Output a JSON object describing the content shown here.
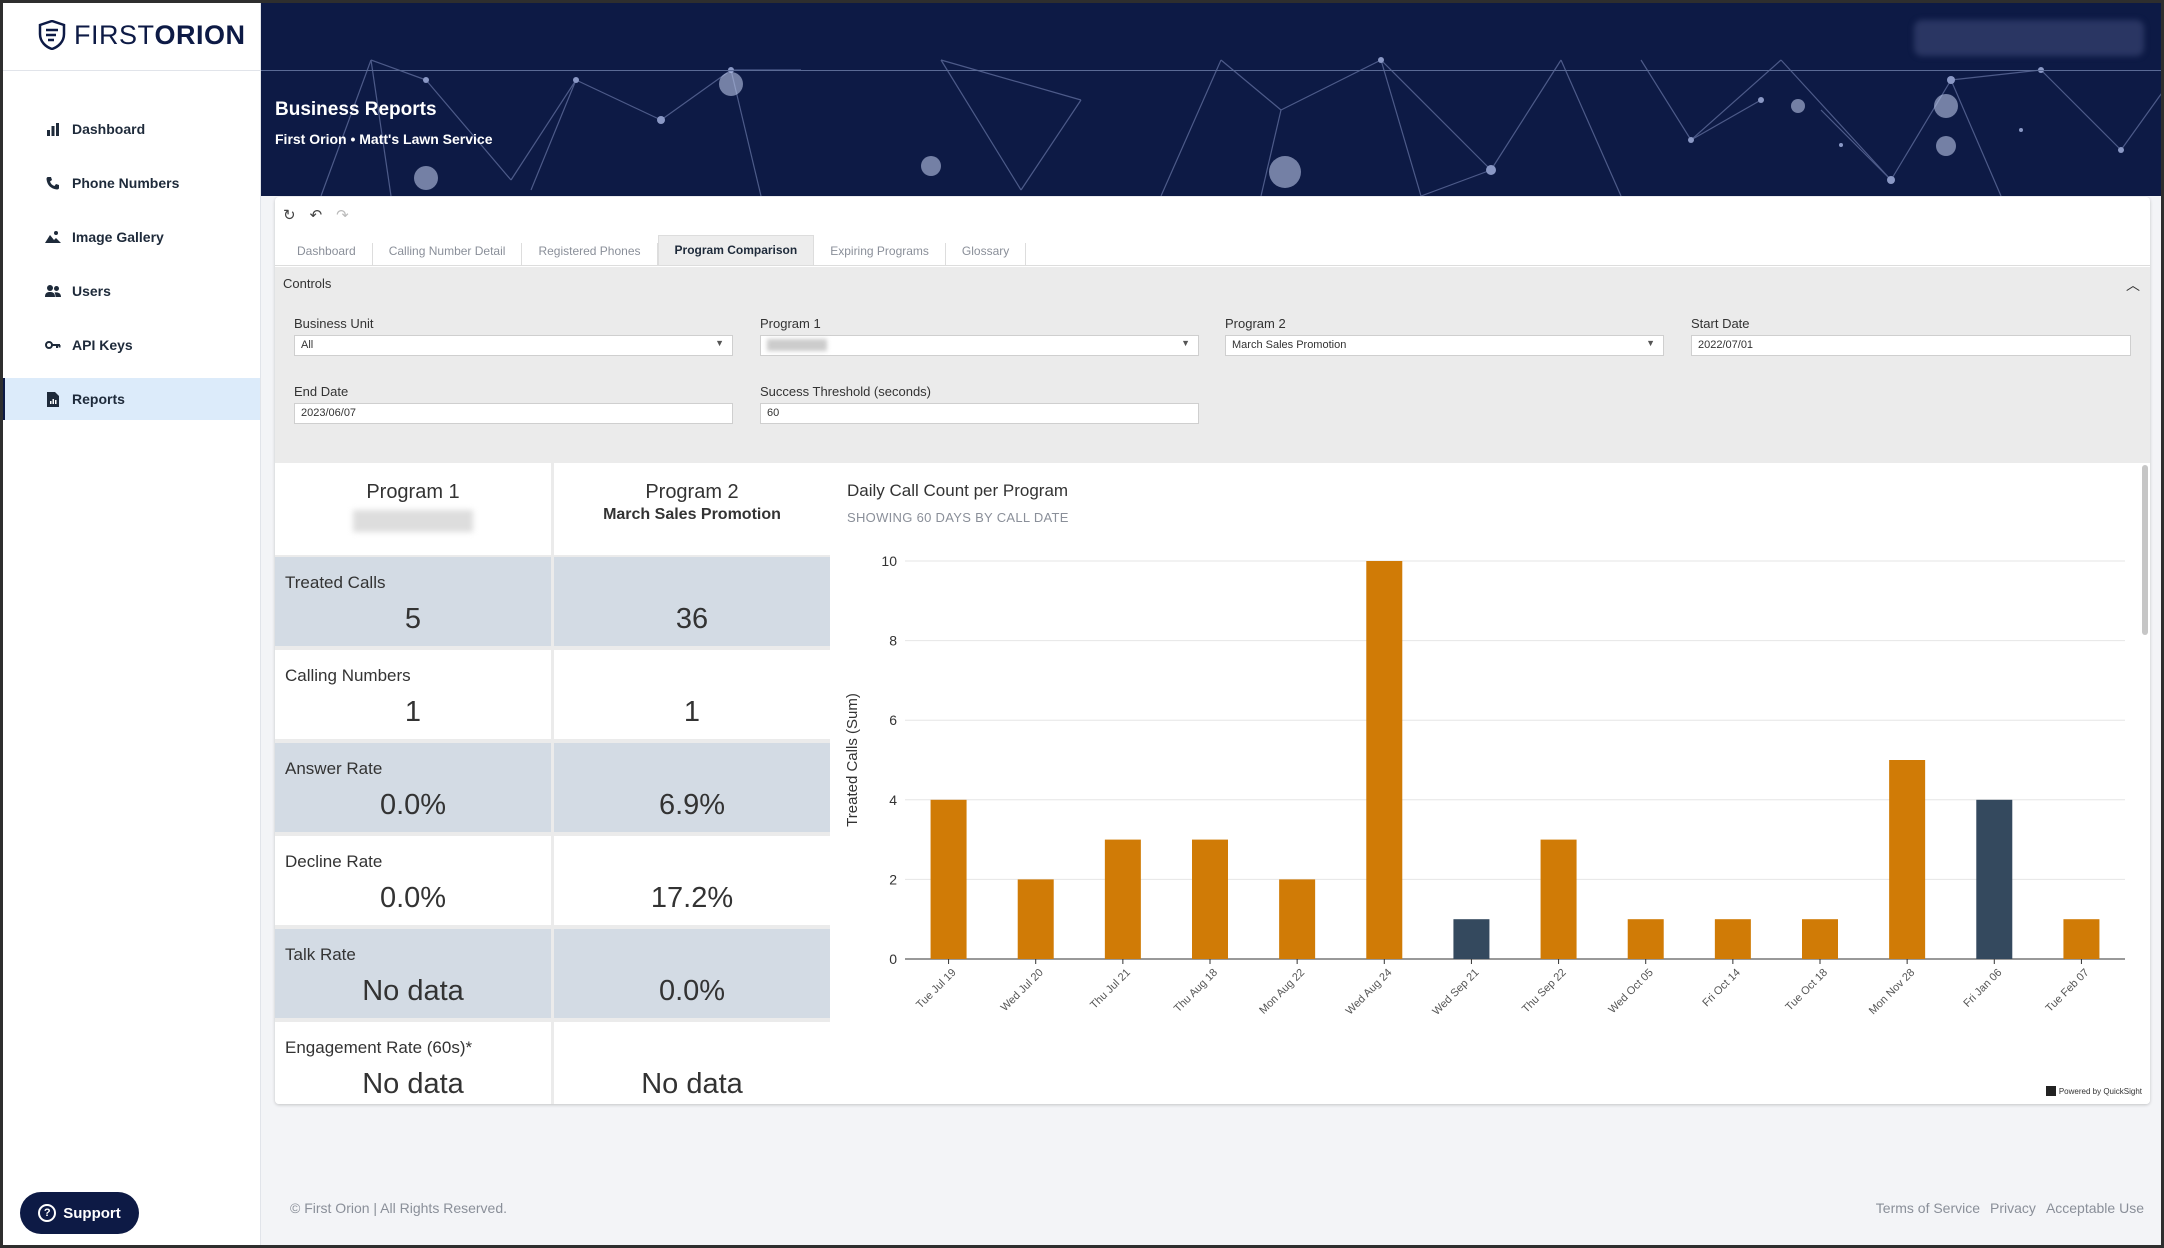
{
  "brand": {
    "name_light": "FIRST",
    "name_bold": "ORION"
  },
  "sidebar": {
    "items": [
      {
        "label": "Dashboard",
        "icon": "bar-chart-icon"
      },
      {
        "label": "Phone Numbers",
        "icon": "phone-icon"
      },
      {
        "label": "Image Gallery",
        "icon": "image-icon"
      },
      {
        "label": "Users",
        "icon": "users-icon"
      },
      {
        "label": "API Keys",
        "icon": "key-icon"
      },
      {
        "label": "Reports",
        "icon": "report-icon",
        "active": true
      }
    ],
    "support_label": "Support"
  },
  "header": {
    "title": "Business Reports",
    "subtitle": "First Orion • Matt's Lawn Service"
  },
  "report": {
    "tabs": [
      "Dashboard",
      "Calling Number Detail",
      "Registered Phones",
      "Program Comparison",
      "Expiring Programs",
      "Glossary"
    ],
    "active_tab": "Program Comparison",
    "controls": {
      "title": "Controls",
      "business_unit": {
        "label": "Business Unit",
        "value": "All"
      },
      "program1": {
        "label": "Program 1",
        "value": ""
      },
      "program2": {
        "label": "Program 2",
        "value": "March Sales Promotion"
      },
      "start_date": {
        "label": "Start Date",
        "value": "2022/07/01"
      },
      "end_date": {
        "label": "End Date",
        "value": "2023/06/07"
      },
      "threshold": {
        "label": "Success Threshold (seconds)",
        "value": "60"
      }
    },
    "metrics": {
      "program1_header": "Program 1",
      "program2_header": "Program 2",
      "program2_name": "March Sales Promotion",
      "rows": [
        {
          "label": "Treated Calls",
          "p1": "5",
          "p2": "36"
        },
        {
          "label": "Calling Numbers",
          "p1": "1",
          "p2": "1"
        },
        {
          "label": "Answer Rate",
          "p1": "0.0%",
          "p2": "6.9%"
        },
        {
          "label": "Decline Rate",
          "p1": "0.0%",
          "p2": "17.2%"
        },
        {
          "label": "Talk Rate",
          "p1": "No data",
          "p2": "0.0%"
        },
        {
          "label": "Engagement Rate (60s)*",
          "p1": "No data",
          "p2": "No data"
        }
      ]
    },
    "quicksight_label": "Powered by QuickSight"
  },
  "chart_data": {
    "type": "bar",
    "title": "Daily Call Count per Program",
    "subtitle": "SHOWING 60 DAYS BY CALL DATE",
    "ylabel": "Treated Calls (Sum)",
    "xlabel": "",
    "ylim": [
      0,
      10
    ],
    "yticks": [
      0,
      2,
      4,
      6,
      8,
      10
    ],
    "categories": [
      "Tue Jul 19",
      "Wed Jul 20",
      "Thu Jul 21",
      "Thu Aug 18",
      "Mon Aug 22",
      "Wed Aug 24",
      "Wed Sep 21",
      "Thu Sep 22",
      "Wed Oct 05",
      "Fri Oct 14",
      "Tue Oct 18",
      "Mon Nov 28",
      "Fri Jan 06",
      "Tue Feb 07"
    ],
    "series": [
      {
        "values": [
          4,
          2,
          3,
          3,
          2,
          10,
          0,
          3,
          1,
          1,
          1,
          5,
          0,
          1
        ],
        "color": "#d07b06"
      },
      {
        "values": [
          0,
          0,
          0,
          0,
          0,
          0,
          1,
          0,
          0,
          0,
          0,
          0,
          4,
          0
        ],
        "color": "#34495e"
      }
    ],
    "grid": true
  },
  "footer": {
    "copyright": "© First Orion | All Rights Reserved.",
    "links": [
      "Terms of Service",
      "Privacy",
      "Acceptable Use"
    ]
  }
}
